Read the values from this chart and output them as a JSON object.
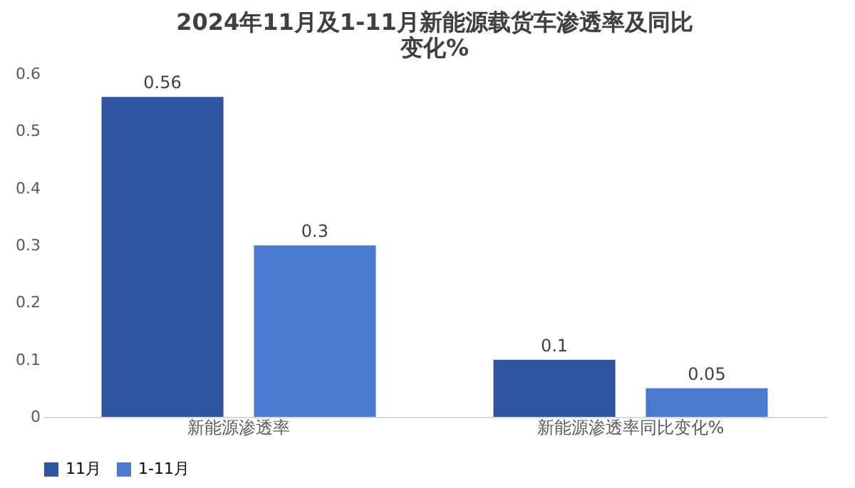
{
  "chart_data": {
    "type": "bar",
    "title": "2024年11月及1-11月新能源载货车渗透率及同比变化%",
    "categories": [
      "新能源渗透率",
      "新能源渗透率同比变化%"
    ],
    "series": [
      {
        "name": "11月",
        "color": "#2e54a2",
        "values": [
          0.56,
          0.1
        ]
      },
      {
        "name": "1-11月",
        "color": "#4a7bd1",
        "values": [
          0.3,
          0.05
        ]
      }
    ],
    "ylim": [
      0,
      0.6
    ],
    "yticks": [
      0,
      0.1,
      0.2,
      0.3,
      0.4,
      0.5,
      0.6
    ],
    "grid": false,
    "legend": "bottom",
    "data_labels": true
  }
}
